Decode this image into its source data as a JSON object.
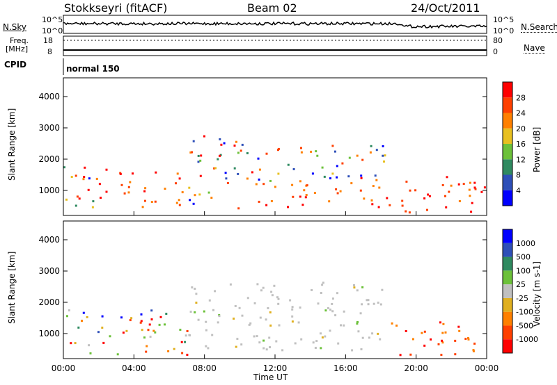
{
  "header": {
    "station": "Stokkseyri (fitACF)",
    "beam": "Beam 02",
    "date": "24/Oct/2011"
  },
  "top_panels": {
    "nsky_label": "N.Sky",
    "nsky_ticks": [
      "10^5",
      "10^0"
    ],
    "nsearch_label": "N.Search",
    "nsearch_ticks": [
      "10^5",
      "10^0"
    ],
    "freq_label": "Freq.",
    "freq_unit": "[MHz]",
    "freq_ticks": [
      "18",
      "8"
    ],
    "nave_label": "Nave",
    "nave_ticks": [
      "80",
      "0"
    ],
    "cpid_label": "CPID",
    "cpid_value": "normal 150"
  },
  "chart_data": [
    {
      "type": "heatmap",
      "name": "power",
      "ylabel": "Slant Range [km]",
      "yticks": [
        1000,
        2000,
        3000,
        4000
      ],
      "ylim": [
        200,
        4600
      ],
      "xlim": [
        0,
        24
      ],
      "colorbar_label": "Power [dB]",
      "colorbar_ticks": [
        "28",
        "24",
        "20",
        "16",
        "12",
        "8",
        "4"
      ],
      "colorbar_colors": [
        "#0000ff",
        "#2e4fb8",
        "#2f8a60",
        "#6cc13a",
        "#e8c020",
        "#ff8000",
        "#ff4000",
        "#ff0000"
      ],
      "scatter_regions": [
        {
          "t0": 0.0,
          "t1": 2.0,
          "r0": 300,
          "r1": 1900,
          "level": "mid"
        },
        {
          "t0": 2.0,
          "t1": 7.0,
          "r0": 500,
          "r1": 1700,
          "level": "high"
        },
        {
          "t0": 7.0,
          "t1": 10.0,
          "r0": 400,
          "r1": 2800,
          "level": "mixed"
        },
        {
          "t0": 10.0,
          "t1": 18.5,
          "r0": 500,
          "r1": 1300,
          "level": "high"
        },
        {
          "t0": 10.0,
          "t1": 18.5,
          "r0": 1300,
          "r1": 2500,
          "level": "mid"
        },
        {
          "t0": 18.5,
          "t1": 24.0,
          "r0": 300,
          "r1": 1500,
          "level": "high"
        }
      ]
    },
    {
      "type": "heatmap",
      "name": "velocity",
      "ylabel": "Slant Range [km]",
      "xlabel": "Time UT",
      "xticks": [
        "00:00",
        "04:00",
        "08:00",
        "12:00",
        "16:00",
        "20:00",
        "00:00"
      ],
      "yticks": [
        1000,
        2000,
        3000,
        4000
      ],
      "ylim": [
        200,
        4600
      ],
      "xlim": [
        0,
        24
      ],
      "colorbar_label": "Velocity [m s-1]",
      "colorbar_ticks": [
        "1000",
        "500",
        "100",
        "25",
        "-25",
        "-100",
        "-500",
        "-1000"
      ],
      "colorbar_colors": [
        "#ff0000",
        "#ff4000",
        "#ff8000",
        "#e0b020",
        "#c0c0c0",
        "#6cc13a",
        "#2f8a60",
        "#2e4fb8",
        "#0000ff"
      ],
      "scatter_regions": [
        {
          "t0": 0.0,
          "t1": 7.0,
          "r0": 300,
          "r1": 1800,
          "level": "mixed"
        },
        {
          "t0": 7.0,
          "t1": 18.5,
          "r0": 500,
          "r1": 2700,
          "level": "zero"
        },
        {
          "t0": 18.5,
          "t1": 24.0,
          "r0": 300,
          "r1": 1400,
          "level": "neg"
        }
      ]
    }
  ]
}
